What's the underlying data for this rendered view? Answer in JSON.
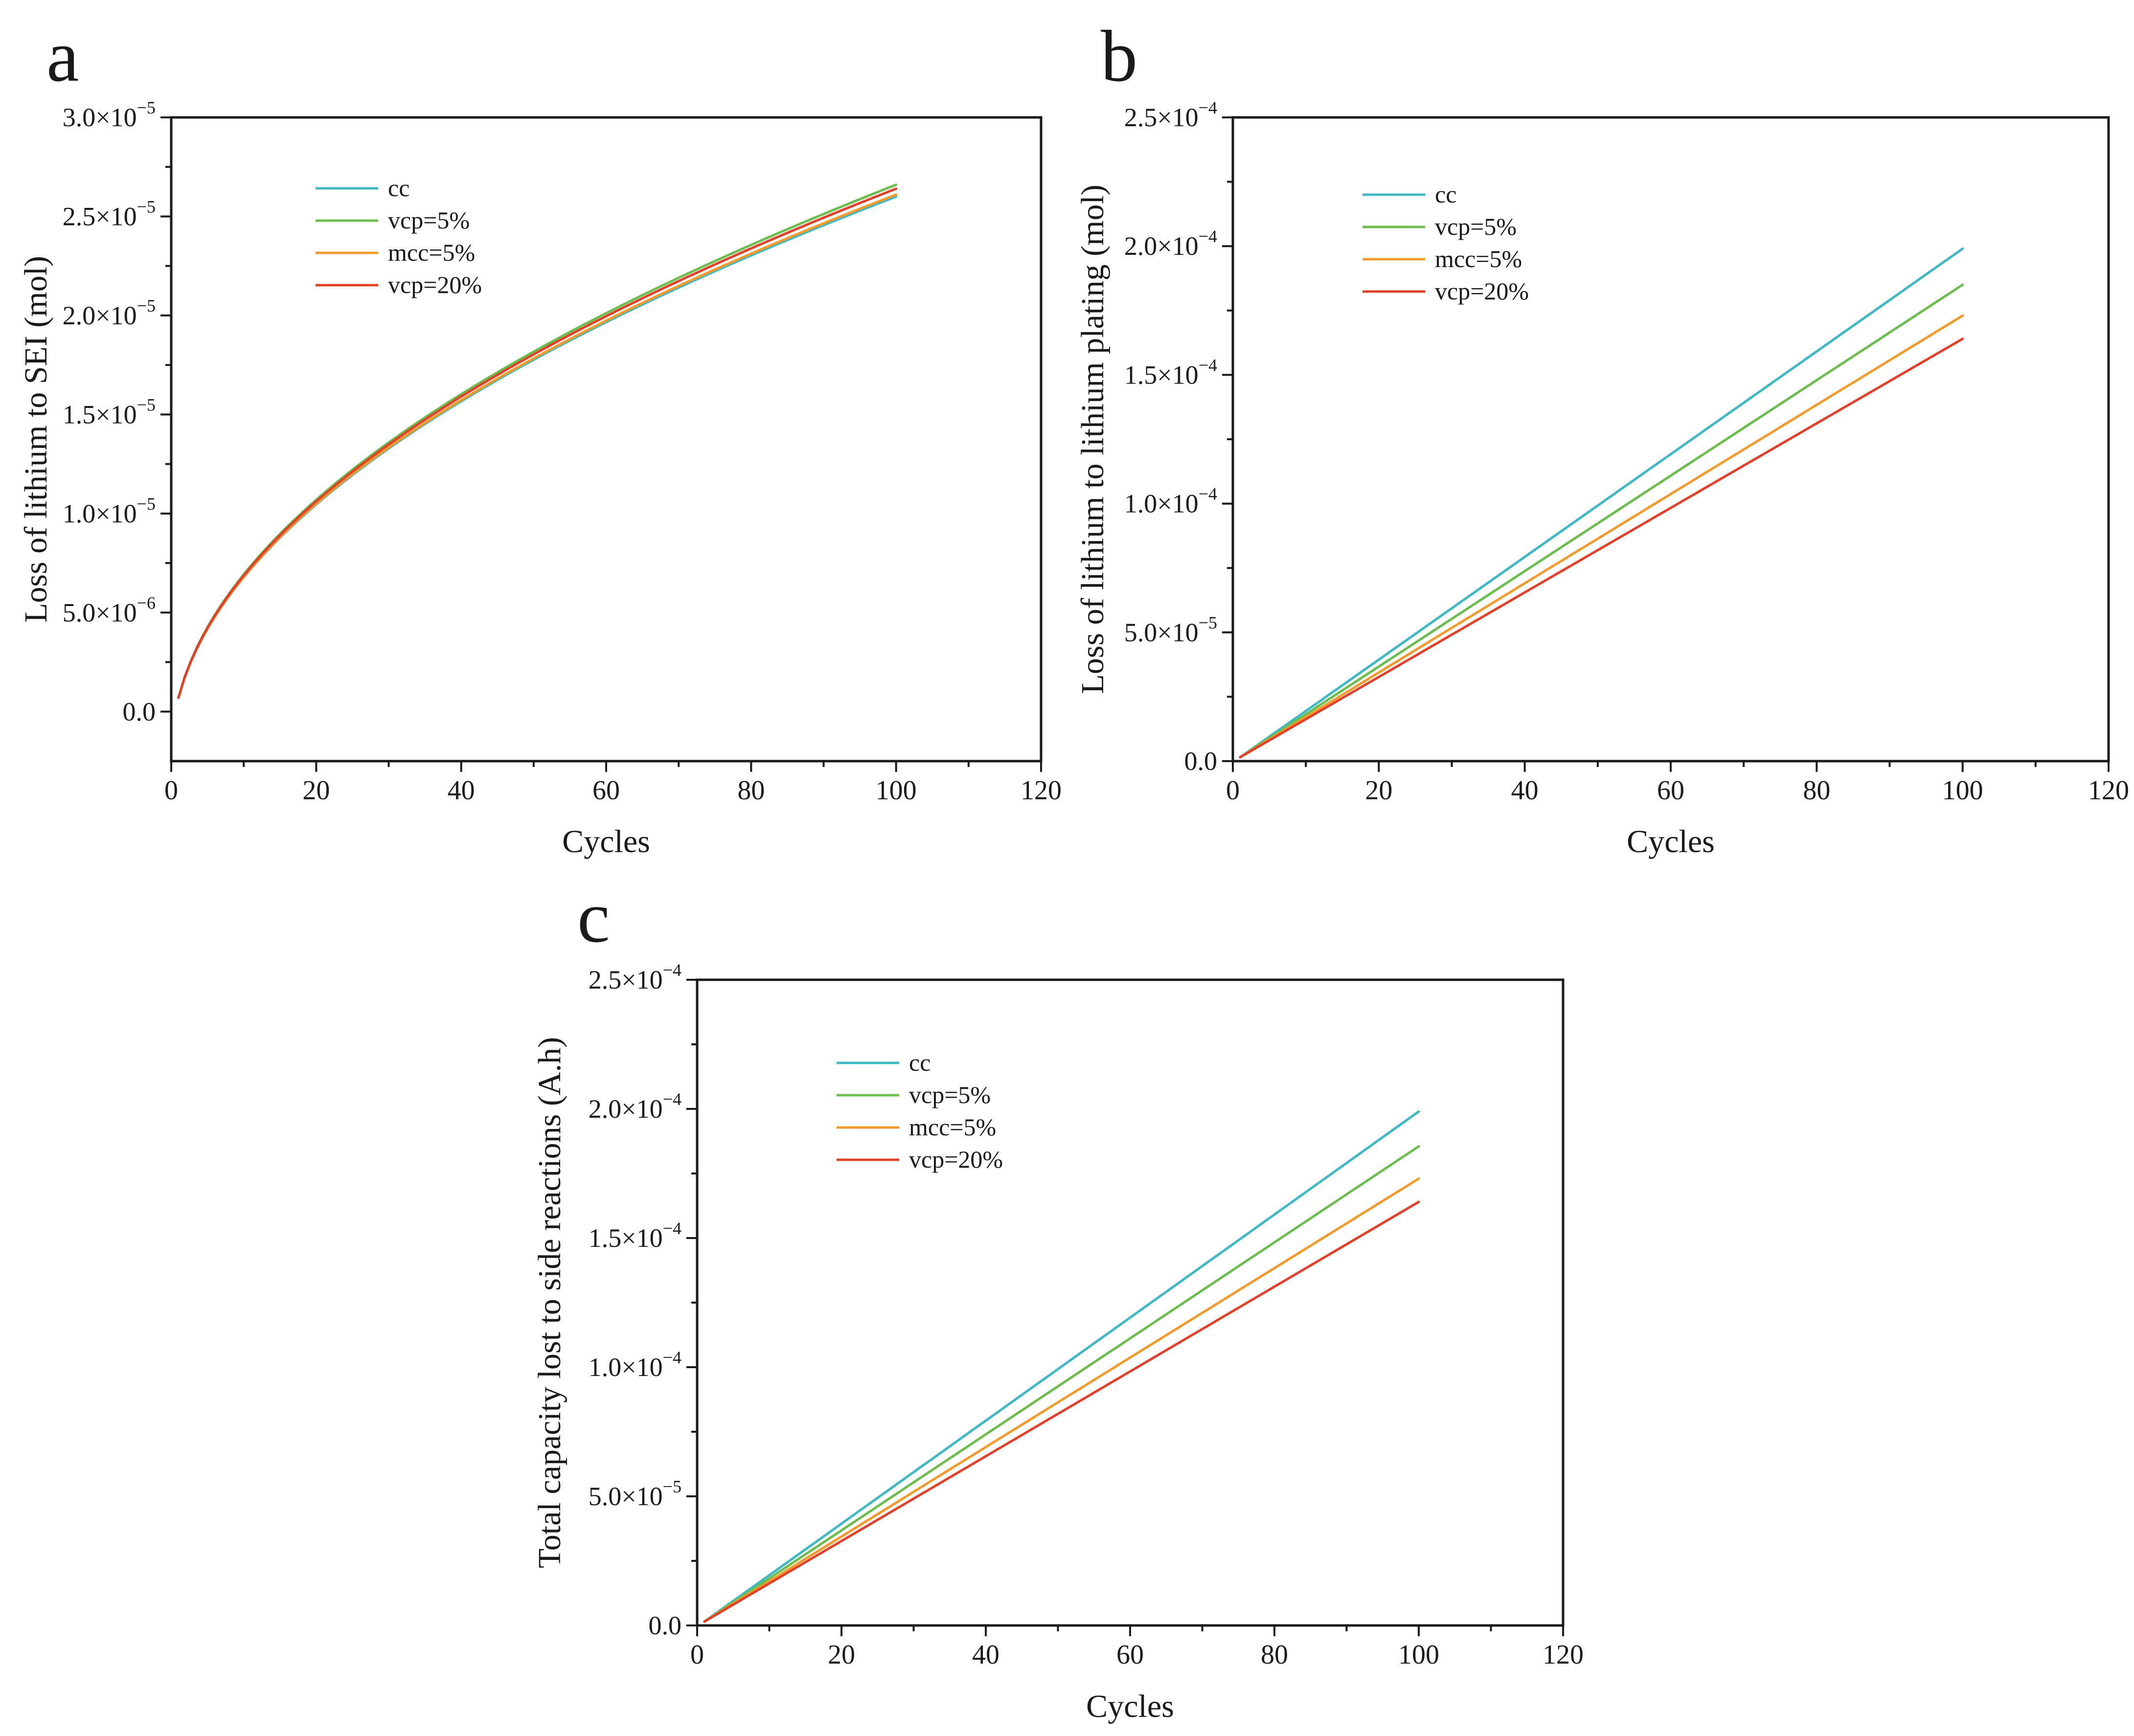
{
  "chart_data": [
    {
      "panel": "a",
      "type": "line",
      "title": "",
      "xlabel": "Cycles",
      "ylabel": "Loss of lithium to SEI (mol)",
      "xlim": [
        0,
        120
      ],
      "ylim": [
        -2.5e-06,
        3e-05
      ],
      "x_ticks": [
        0,
        20,
        40,
        60,
        80,
        100,
        120
      ],
      "x_tick_labels": [
        "0",
        "20",
        "40",
        "60",
        "80",
        "100",
        "120"
      ],
      "y_ticks": [
        0,
        5e-06,
        1e-05,
        1.5e-05,
        2e-05,
        2.5e-05,
        3e-05
      ],
      "y_tick_labels": [
        {
          "mantissa": "0.0",
          "exponent": ""
        },
        {
          "mantissa": "5.0×10",
          "exponent": "−6"
        },
        {
          "mantissa": "1.0×10",
          "exponent": "−5"
        },
        {
          "mantissa": "1.5×10",
          "exponent": "−5"
        },
        {
          "mantissa": "2.0×10",
          "exponent": "−5"
        },
        {
          "mantissa": "2.5×10",
          "exponent": "−5"
        },
        {
          "mantissa": "3.0×10",
          "exponent": "−5"
        }
      ],
      "legend_position": "top-left",
      "series": [
        {
          "name": "cc",
          "color": "#3fb8c4",
          "model": "sqrt",
          "start": [
            1,
            7e-07
          ],
          "end": [
            100,
            2.6e-05
          ]
        },
        {
          "name": "vcp=5%",
          "color": "#6cbd4f",
          "model": "sqrt",
          "start": [
            1,
            7e-07
          ],
          "end": [
            100,
            2.66e-05
          ]
        },
        {
          "name": "mcc=5%",
          "color": "#f39a2c",
          "model": "sqrt",
          "start": [
            1,
            7e-07
          ],
          "end": [
            100,
            2.61e-05
          ]
        },
        {
          "name": "vcp=20%",
          "color": "#e3402a",
          "model": "sqrt",
          "start": [
            1,
            7e-07
          ],
          "end": [
            100,
            2.64e-05
          ]
        }
      ]
    },
    {
      "panel": "b",
      "type": "line",
      "title": "",
      "xlabel": "Cycles",
      "ylabel": "Loss of lithium to lithium plating (mol)",
      "xlim": [
        0,
        120
      ],
      "ylim": [
        0,
        0.00025
      ],
      "x_ticks": [
        0,
        20,
        40,
        60,
        80,
        100,
        120
      ],
      "x_tick_labels": [
        "0",
        "20",
        "40",
        "60",
        "80",
        "100",
        "120"
      ],
      "y_ticks": [
        0,
        5e-05,
        0.0001,
        0.00015,
        0.0002,
        0.00025
      ],
      "y_tick_labels": [
        {
          "mantissa": "0.0",
          "exponent": ""
        },
        {
          "mantissa": "5.0×10",
          "exponent": "−5"
        },
        {
          "mantissa": "1.0×10",
          "exponent": "−4"
        },
        {
          "mantissa": "1.5×10",
          "exponent": "−4"
        },
        {
          "mantissa": "2.0×10",
          "exponent": "−4"
        },
        {
          "mantissa": "2.5×10",
          "exponent": "−4"
        }
      ],
      "legend_position": "top-left",
      "series": [
        {
          "name": "cc",
          "color": "#3fb8c4",
          "model": "linear",
          "start": [
            1,
            1.5e-06
          ],
          "end": [
            100,
            0.000199
          ]
        },
        {
          "name": "vcp=5%",
          "color": "#6cbd4f",
          "model": "linear",
          "start": [
            1,
            1.5e-06
          ],
          "end": [
            100,
            0.000185
          ]
        },
        {
          "name": "mcc=5%",
          "color": "#f39a2c",
          "model": "linear",
          "start": [
            1,
            1.5e-06
          ],
          "end": [
            100,
            0.000173
          ]
        },
        {
          "name": "vcp=20%",
          "color": "#e3402a",
          "model": "linear",
          "start": [
            1,
            1.5e-06
          ],
          "end": [
            100,
            0.000164
          ]
        }
      ]
    },
    {
      "panel": "c",
      "type": "line",
      "title": "",
      "xlabel": "Cycles",
      "ylabel": "Total capacity lost to side reactions (A.h)",
      "xlim": [
        0,
        120
      ],
      "ylim": [
        0,
        0.00025
      ],
      "x_ticks": [
        0,
        20,
        40,
        60,
        80,
        100,
        120
      ],
      "x_tick_labels": [
        "0",
        "20",
        "40",
        "60",
        "80",
        "100",
        "120"
      ],
      "y_ticks": [
        0,
        5e-05,
        0.0001,
        0.00015,
        0.0002,
        0.00025
      ],
      "y_tick_labels": [
        {
          "mantissa": "0.0",
          "exponent": ""
        },
        {
          "mantissa": "5.0×10",
          "exponent": "−5"
        },
        {
          "mantissa": "1.0×10",
          "exponent": "−4"
        },
        {
          "mantissa": "1.5×10",
          "exponent": "−4"
        },
        {
          "mantissa": "2.0×10",
          "exponent": "−4"
        },
        {
          "mantissa": "2.5×10",
          "exponent": "−4"
        }
      ],
      "legend_position": "top-left",
      "series": [
        {
          "name": "cc",
          "color": "#3fb8c4",
          "model": "linear",
          "start": [
            1,
            1.5e-06
          ],
          "end": [
            100,
            0.000199
          ]
        },
        {
          "name": "vcp=5%",
          "color": "#6cbd4f",
          "model": "linear",
          "start": [
            1,
            1.5e-06
          ],
          "end": [
            100,
            0.0001855
          ]
        },
        {
          "name": "mcc=5%",
          "color": "#f39a2c",
          "model": "linear",
          "start": [
            1,
            1.5e-06
          ],
          "end": [
            100,
            0.000173
          ]
        },
        {
          "name": "vcp=20%",
          "color": "#e3402a",
          "model": "linear",
          "start": [
            1,
            1.5e-06
          ],
          "end": [
            100,
            0.000164
          ]
        }
      ]
    }
  ]
}
